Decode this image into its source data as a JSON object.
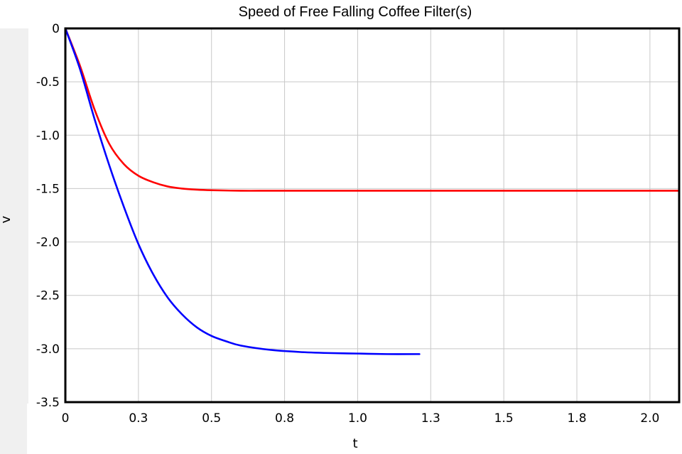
{
  "chart_data": {
    "type": "line",
    "title": "Speed of Free Falling Coffee Filter(s)",
    "xlabel": "t",
    "ylabel": "v",
    "xlim": [
      0,
      2.1
    ],
    "ylim": [
      -3.5,
      0
    ],
    "grid": true,
    "x_ticks": [
      "0",
      "0.3",
      "0.5",
      "0.8",
      "1.0",
      "1.3",
      "1.5",
      "1.8",
      "2.0"
    ],
    "x_tick_values": [
      0,
      0.25,
      0.5,
      0.75,
      1.0,
      1.25,
      1.5,
      1.75,
      2.0
    ],
    "y_ticks": [
      "0",
      "-0.5",
      "-1.0",
      "-1.5",
      "-2.0",
      "-2.5",
      "-3.0",
      "-3.5"
    ],
    "y_tick_values": [
      0,
      -0.5,
      -1.0,
      -1.5,
      -2.0,
      -2.5,
      -3.0,
      -3.5
    ],
    "series": [
      {
        "color": "#ff0000",
        "x": [
          0,
          0.05,
          0.1,
          0.15,
          0.2,
          0.25,
          0.3,
          0.35,
          0.4,
          0.45,
          0.5,
          0.6,
          0.7,
          0.8,
          1.0,
          1.25,
          1.5,
          1.75,
          2.0,
          2.1
        ],
        "y": [
          0,
          -0.35,
          -0.76,
          -1.08,
          -1.27,
          -1.38,
          -1.44,
          -1.48,
          -1.5,
          -1.51,
          -1.515,
          -1.52,
          -1.52,
          -1.52,
          -1.52,
          -1.52,
          -1.52,
          -1.52,
          -1.52,
          -1.52
        ]
      },
      {
        "color": "#0000ff",
        "x": [
          0,
          0.05,
          0.1,
          0.15,
          0.2,
          0.25,
          0.3,
          0.35,
          0.4,
          0.45,
          0.5,
          0.55,
          0.6,
          0.7,
          0.8,
          0.9,
          1.0,
          1.1,
          1.2,
          1.21
        ],
        "y": [
          0,
          -0.38,
          -0.85,
          -1.28,
          -1.67,
          -2.02,
          -2.3,
          -2.52,
          -2.68,
          -2.8,
          -2.88,
          -2.93,
          -2.97,
          -3.01,
          -3.03,
          -3.04,
          -3.045,
          -3.05,
          -3.05,
          -3.05
        ]
      }
    ]
  }
}
